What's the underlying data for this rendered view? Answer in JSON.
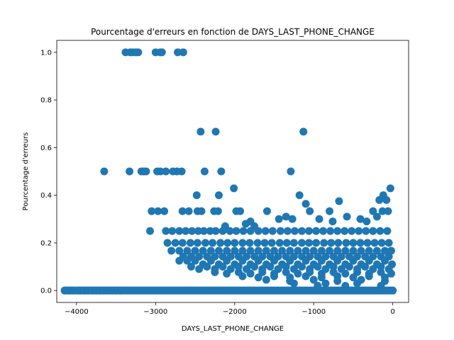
{
  "chart_data": {
    "type": "scatter",
    "title": "Pourcentage d'erreurs en fonction de DAYS_LAST_PHONE_CHANGE",
    "xlabel": "DAYS_LAST_PHONE_CHANGE",
    "ylabel": "Pourcentage d'erreurs",
    "xlim": [
      -4250,
      200
    ],
    "ylim": [
      -0.05,
      1.05
    ],
    "xticks": [
      -4000,
      -3000,
      -2000,
      -1000,
      0
    ],
    "yticks": [
      0.0,
      0.2,
      0.4,
      0.6,
      0.8,
      1.0
    ],
    "grid": false,
    "color": "#1f77b4",
    "series": [
      {
        "points": [
          [
            -3380,
            1.0
          ],
          [
            -3320,
            1.0
          ],
          [
            -3290,
            1.0
          ],
          [
            -3250,
            1.0
          ],
          [
            -3220,
            1.0
          ],
          [
            -3000,
            1.0
          ],
          [
            -2940,
            1.0
          ],
          [
            -2920,
            1.0
          ],
          [
            -2720,
            1.0
          ],
          [
            -2650,
            1.0
          ],
          [
            -2430,
            0.667
          ],
          [
            -2240,
            0.667
          ],
          [
            -1130,
            0.667
          ],
          [
            -3650,
            0.5
          ],
          [
            -3330,
            0.5
          ],
          [
            -3180,
            0.5
          ],
          [
            -3150,
            0.5
          ],
          [
            -3120,
            0.5
          ],
          [
            -2980,
            0.5
          ],
          [
            -2940,
            0.5
          ],
          [
            -2870,
            0.5
          ],
          [
            -2780,
            0.5
          ],
          [
            -2730,
            0.5
          ],
          [
            -2670,
            0.5
          ],
          [
            -2380,
            0.5
          ],
          [
            -2170,
            0.5
          ],
          [
            -1290,
            0.5
          ],
          [
            -2480,
            0.4
          ],
          [
            -2200,
            0.4
          ],
          [
            -1180,
            0.4
          ],
          [
            -2010,
            0.429
          ],
          [
            -30,
            0.429
          ],
          [
            -120,
            0.4
          ],
          [
            -80,
            0.38
          ],
          [
            -680,
            0.375
          ],
          [
            -1100,
            0.364
          ],
          [
            -170,
            0.38
          ],
          [
            -3050,
            0.333
          ],
          [
            -2970,
            0.333
          ],
          [
            -2890,
            0.333
          ],
          [
            -2660,
            0.333
          ],
          [
            -2580,
            0.333
          ],
          [
            -2470,
            0.333
          ],
          [
            -2420,
            0.333
          ],
          [
            -2260,
            0.333
          ],
          [
            -2210,
            0.333
          ],
          [
            -1980,
            0.333
          ],
          [
            -1930,
            0.333
          ],
          [
            -1590,
            0.333
          ],
          [
            -1050,
            0.333
          ],
          [
            -800,
            0.333
          ],
          [
            -250,
            0.333
          ],
          [
            -130,
            0.333
          ],
          [
            -60,
            0.333
          ],
          [
            -1440,
            0.3
          ],
          [
            -1350,
            0.31
          ],
          [
            -1270,
            0.3
          ],
          [
            -930,
            0.3
          ],
          [
            -760,
            0.29
          ],
          [
            -580,
            0.31
          ],
          [
            -410,
            0.3
          ],
          [
            -330,
            0.29
          ],
          [
            -200,
            0.31
          ],
          [
            -1800,
            0.29
          ],
          [
            -1750,
            0.27
          ],
          [
            -1860,
            0.28
          ],
          [
            -2120,
            0.27
          ],
          [
            -3070,
            0.25
          ],
          [
            -2870,
            0.25
          ],
          [
            -2790,
            0.25
          ],
          [
            -2700,
            0.25
          ],
          [
            -2620,
            0.25
          ],
          [
            -2540,
            0.25
          ],
          [
            -2460,
            0.25
          ],
          [
            -2390,
            0.25
          ],
          [
            -2310,
            0.25
          ],
          [
            -2240,
            0.25
          ],
          [
            -2150,
            0.25
          ],
          [
            -2060,
            0.25
          ],
          [
            -1980,
            0.25
          ],
          [
            -1890,
            0.25
          ],
          [
            -1800,
            0.25
          ],
          [
            -1700,
            0.25
          ],
          [
            -1610,
            0.25
          ],
          [
            -1520,
            0.25
          ],
          [
            -1420,
            0.25
          ],
          [
            -1330,
            0.25
          ],
          [
            -1240,
            0.25
          ],
          [
            -1150,
            0.25
          ],
          [
            -1060,
            0.25
          ],
          [
            -970,
            0.25
          ],
          [
            -880,
            0.25
          ],
          [
            -790,
            0.25
          ],
          [
            -700,
            0.25
          ],
          [
            -610,
            0.25
          ],
          [
            -520,
            0.25
          ],
          [
            -430,
            0.25
          ],
          [
            -340,
            0.25
          ],
          [
            -250,
            0.25
          ],
          [
            -160,
            0.25
          ],
          [
            -70,
            0.25
          ],
          [
            -2850,
            0.2
          ],
          [
            -2750,
            0.2
          ],
          [
            -2660,
            0.2
          ],
          [
            -2560,
            0.2
          ],
          [
            -2470,
            0.2
          ],
          [
            -2370,
            0.2
          ],
          [
            -2280,
            0.2
          ],
          [
            -2180,
            0.2
          ],
          [
            -2090,
            0.2
          ],
          [
            -2000,
            0.2
          ],
          [
            -1900,
            0.2
          ],
          [
            -1810,
            0.2
          ],
          [
            -1710,
            0.2
          ],
          [
            -1620,
            0.2
          ],
          [
            -1530,
            0.2
          ],
          [
            -1430,
            0.2
          ],
          [
            -1340,
            0.2
          ],
          [
            -1250,
            0.2
          ],
          [
            -1150,
            0.2
          ],
          [
            -1060,
            0.2
          ],
          [
            -970,
            0.2
          ],
          [
            -870,
            0.2
          ],
          [
            -780,
            0.2
          ],
          [
            -690,
            0.2
          ],
          [
            -590,
            0.2
          ],
          [
            -500,
            0.2
          ],
          [
            -410,
            0.2
          ],
          [
            -320,
            0.2
          ],
          [
            -230,
            0.2
          ],
          [
            -140,
            0.2
          ],
          [
            -50,
            0.2
          ],
          [
            -2800,
            0.167
          ],
          [
            -2700,
            0.167
          ],
          [
            -2600,
            0.167
          ],
          [
            -2500,
            0.167
          ],
          [
            -2400,
            0.167
          ],
          [
            -2300,
            0.167
          ],
          [
            -2200,
            0.167
          ],
          [
            -2100,
            0.167
          ],
          [
            -2000,
            0.167
          ],
          [
            -1900,
            0.167
          ],
          [
            -1800,
            0.167
          ],
          [
            -1700,
            0.167
          ],
          [
            -1600,
            0.167
          ],
          [
            -1500,
            0.167
          ],
          [
            -1400,
            0.167
          ],
          [
            -1300,
            0.167
          ],
          [
            -1200,
            0.167
          ],
          [
            -1100,
            0.167
          ],
          [
            -1000,
            0.167
          ],
          [
            -900,
            0.167
          ],
          [
            -800,
            0.167
          ],
          [
            -700,
            0.167
          ],
          [
            -600,
            0.167
          ],
          [
            -500,
            0.167
          ],
          [
            -400,
            0.167
          ],
          [
            -300,
            0.167
          ],
          [
            -200,
            0.167
          ],
          [
            -100,
            0.167
          ],
          [
            -20,
            0.167
          ],
          [
            -2650,
            0.143
          ],
          [
            -2550,
            0.143
          ],
          [
            -2450,
            0.143
          ],
          [
            -2350,
            0.143
          ],
          [
            -2250,
            0.143
          ],
          [
            -2150,
            0.143
          ],
          [
            -2050,
            0.143
          ],
          [
            -1950,
            0.143
          ],
          [
            -1850,
            0.143
          ],
          [
            -1750,
            0.143
          ],
          [
            -1650,
            0.143
          ],
          [
            -1550,
            0.143
          ],
          [
            -1450,
            0.143
          ],
          [
            -1350,
            0.143
          ],
          [
            -1250,
            0.143
          ],
          [
            -1150,
            0.143
          ],
          [
            -1050,
            0.143
          ],
          [
            -950,
            0.143
          ],
          [
            -850,
            0.143
          ],
          [
            -750,
            0.143
          ],
          [
            -650,
            0.143
          ],
          [
            -550,
            0.143
          ],
          [
            -450,
            0.143
          ],
          [
            -350,
            0.143
          ],
          [
            -250,
            0.143
          ],
          [
            -150,
            0.143
          ],
          [
            -50,
            0.143
          ],
          [
            -2700,
            0.125
          ],
          [
            -2600,
            0.125
          ],
          [
            -2500,
            0.125
          ],
          [
            -2400,
            0.11
          ],
          [
            -2300,
            0.125
          ],
          [
            -2200,
            0.11
          ],
          [
            -2100,
            0.125
          ],
          [
            -2000,
            0.11
          ],
          [
            -1900,
            0.125
          ],
          [
            -1800,
            0.11
          ],
          [
            -1700,
            0.125
          ],
          [
            -1600,
            0.11
          ],
          [
            -1500,
            0.125
          ],
          [
            -1400,
            0.11
          ],
          [
            -1300,
            0.125
          ],
          [
            -1200,
            0.11
          ],
          [
            -1100,
            0.125
          ],
          [
            -1000,
            0.11
          ],
          [
            -900,
            0.125
          ],
          [
            -800,
            0.11
          ],
          [
            -700,
            0.125
          ],
          [
            -600,
            0.11
          ],
          [
            -500,
            0.125
          ],
          [
            -400,
            0.11
          ],
          [
            -300,
            0.125
          ],
          [
            -200,
            0.11
          ],
          [
            -100,
            0.125
          ],
          [
            -10,
            0.11
          ],
          [
            -2550,
            0.1
          ],
          [
            -2450,
            0.09
          ],
          [
            -2350,
            0.1
          ],
          [
            -2250,
            0.09
          ],
          [
            -2150,
            0.1
          ],
          [
            -2050,
            0.09
          ],
          [
            -1950,
            0.1
          ],
          [
            -1850,
            0.09
          ],
          [
            -1750,
            0.1
          ],
          [
            -1650,
            0.09
          ],
          [
            -1550,
            0.1
          ],
          [
            -1450,
            0.09
          ],
          [
            -1350,
            0.1
          ],
          [
            -1250,
            0.09
          ],
          [
            -1150,
            0.1
          ],
          [
            -1050,
            0.09
          ],
          [
            -950,
            0.1
          ],
          [
            -850,
            0.09
          ],
          [
            -750,
            0.1
          ],
          [
            -650,
            0.09
          ],
          [
            -550,
            0.1
          ],
          [
            -450,
            0.09
          ],
          [
            -350,
            0.1
          ],
          [
            -250,
            0.09
          ],
          [
            -150,
            0.1
          ],
          [
            -50,
            0.09
          ],
          [
            -2250,
            0.077
          ],
          [
            -2100,
            0.071
          ],
          [
            -1950,
            0.077
          ],
          [
            -1800,
            0.071
          ],
          [
            -1650,
            0.077
          ],
          [
            -1500,
            0.071
          ],
          [
            -1350,
            0.077
          ],
          [
            -1200,
            0.071
          ],
          [
            -1050,
            0.077
          ],
          [
            -900,
            0.071
          ],
          [
            -750,
            0.077
          ],
          [
            -600,
            0.071
          ],
          [
            -450,
            0.077
          ],
          [
            -300,
            0.071
          ],
          [
            -150,
            0.077
          ],
          [
            -20,
            0.071
          ],
          [
            -1900,
            0.06
          ],
          [
            -1700,
            0.055
          ],
          [
            -1500,
            0.06
          ],
          [
            -1300,
            0.055
          ],
          [
            -1100,
            0.06
          ],
          [
            -900,
            0.055
          ],
          [
            -700,
            0.06
          ],
          [
            -500,
            0.055
          ],
          [
            -300,
            0.06
          ],
          [
            -100,
            0.055
          ],
          [
            -1600,
            0.045
          ],
          [
            -1300,
            0.04
          ],
          [
            -1000,
            0.045
          ],
          [
            -700,
            0.04
          ],
          [
            -400,
            0.045
          ],
          [
            -100,
            0.04
          ],
          [
            -1250,
            0.03
          ],
          [
            -850,
            0.03
          ],
          [
            -450,
            0.03
          ],
          [
            -150,
            0.02
          ],
          [
            -600,
            0.02
          ],
          [
            -950,
            0.02
          ]
        ],
        "zero_line_segments": [
          [
            -4150,
            -4050
          ],
          [
            -3980,
            0
          ]
        ],
        "zero_points": [
          -4150,
          -4100,
          -4040,
          -4010,
          -3980,
          -3950,
          -3900,
          -3850,
          -3800,
          -3750,
          -3700,
          -3650,
          -3600,
          -3550,
          -3500,
          -3450
        ]
      }
    ]
  }
}
